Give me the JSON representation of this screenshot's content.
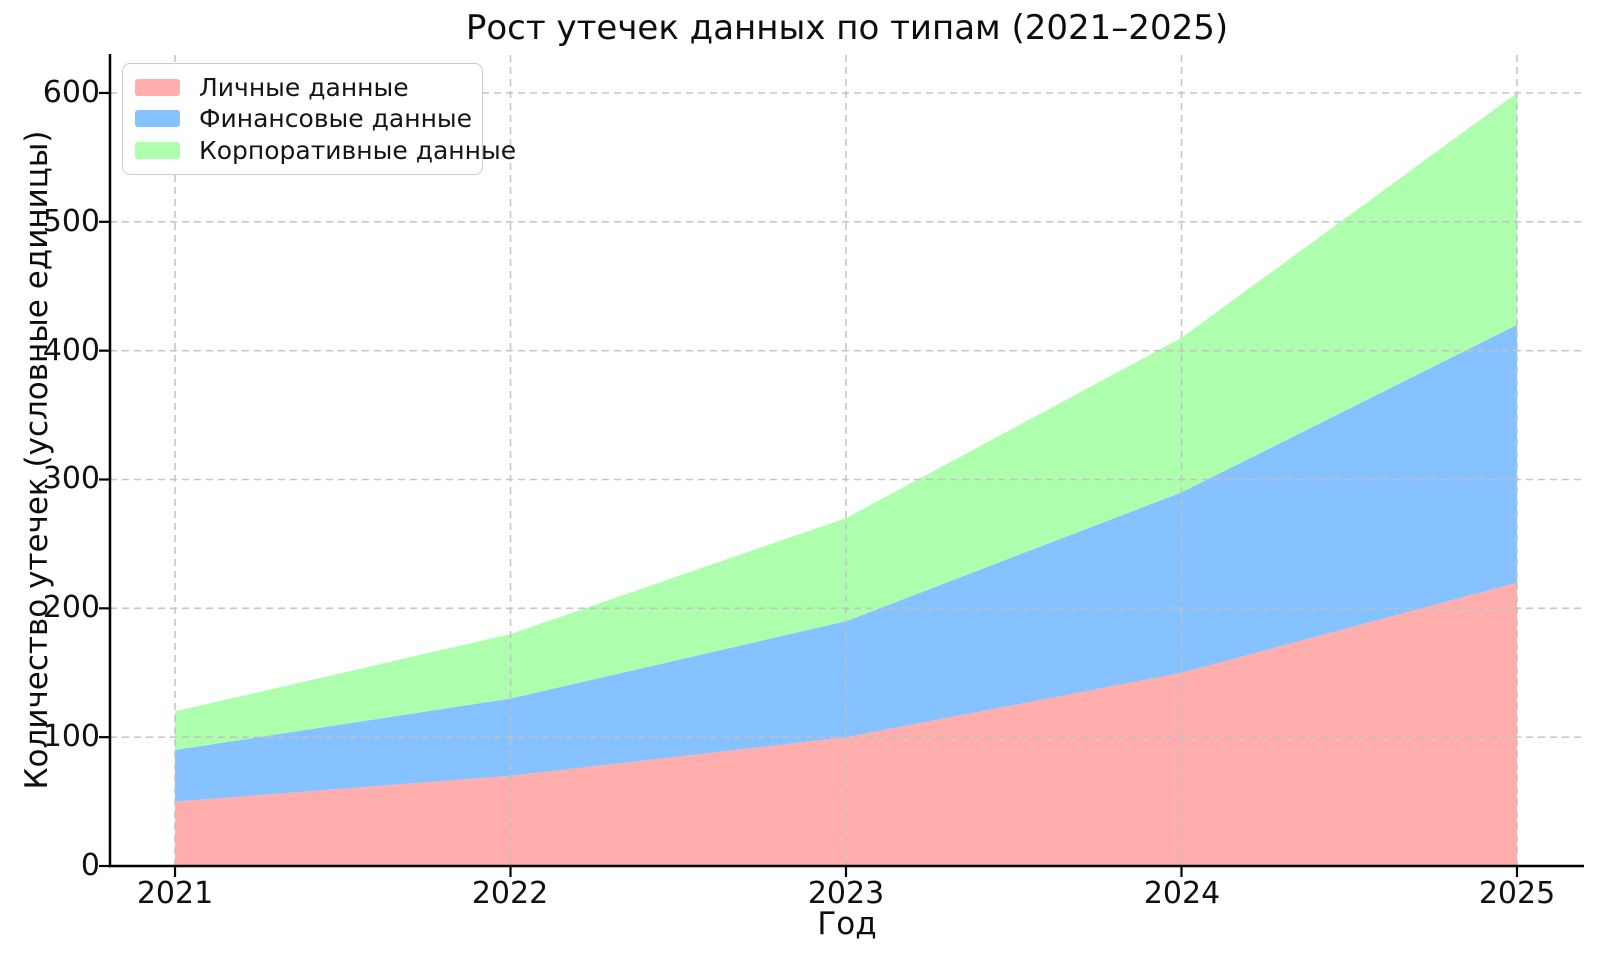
{
  "chart_data": {
    "type": "area",
    "stacked": true,
    "title": "Рост утечек данных по типам (2021–2025)",
    "xlabel": "Год",
    "ylabel": "Количество утечек (условные единицы)",
    "x": [
      2021,
      2022,
      2023,
      2024,
      2025
    ],
    "xtick_labels": [
      "2021",
      "2022",
      "2023",
      "2024",
      "2025"
    ],
    "ytick_labels": [
      "0",
      "100",
      "200",
      "300",
      "400",
      "500",
      "600"
    ],
    "ylim": [
      0,
      630
    ],
    "grid": true,
    "grid_style": "dashed",
    "legend_position": "upper-left",
    "series": [
      {
        "name": "Личные данные",
        "values": [
          50,
          70,
          100,
          150,
          220
        ],
        "color": "#ffadad"
      },
      {
        "name": "Финансовые данные",
        "values": [
          40,
          60,
          90,
          140,
          200
        ],
        "color": "#85c2ff"
      },
      {
        "name": "Корпоративные данные",
        "values": [
          30,
          50,
          80,
          120,
          180
        ],
        "color": "#adffad"
      }
    ],
    "cumulative_totals": [
      120,
      180,
      270,
      410,
      600
    ],
    "colors": {
      "grid": "#c2c2c2",
      "axis": "#000000",
      "text": "#111111",
      "legend_border": "#cccccc"
    }
  }
}
